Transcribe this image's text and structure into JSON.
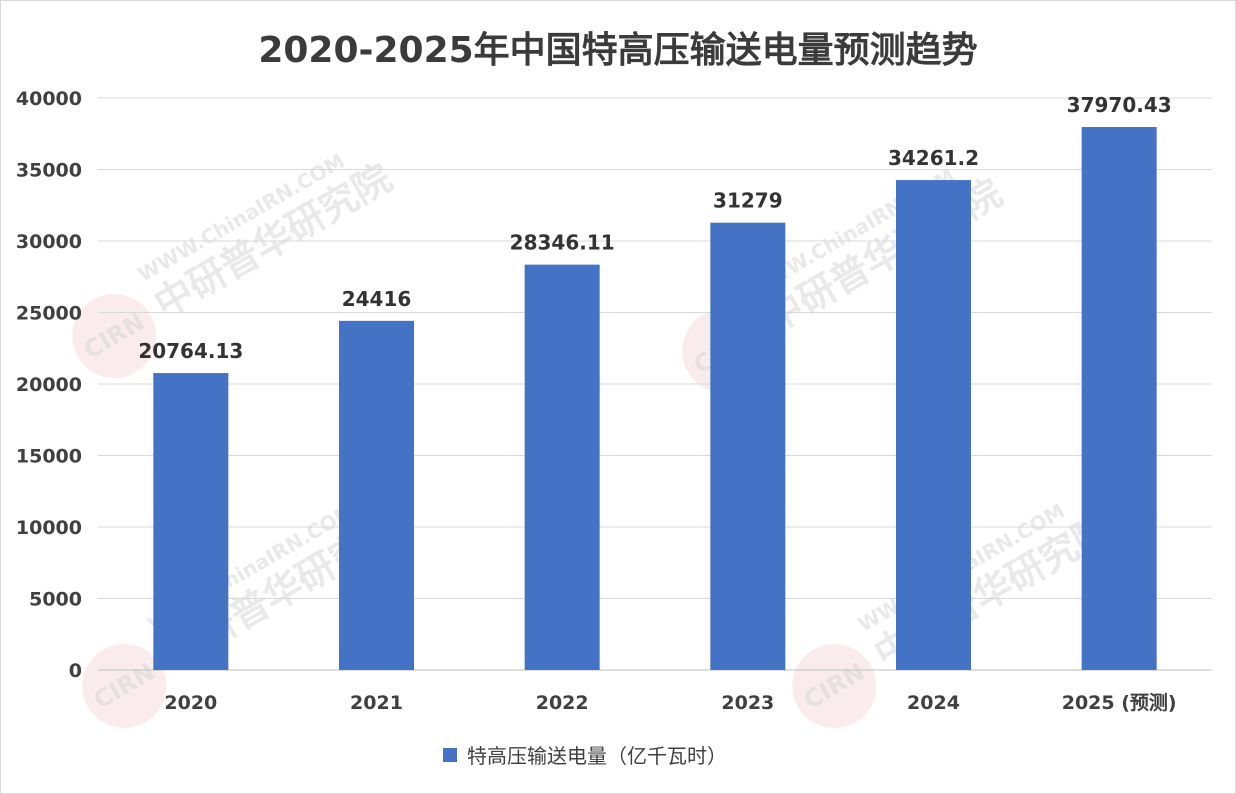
{
  "chart_data": {
    "type": "bar",
    "title": "2020-2025年中国特高压输送电量预测趋势",
    "categories": [
      "2020",
      "2021",
      "2022",
      "2023",
      "2024",
      "2025 (预测)"
    ],
    "series": [
      {
        "name": "特高压输送电量（亿千瓦时）",
        "values": [
          20764.13,
          24416,
          28346.11,
          31279,
          34261.2,
          37970.43
        ],
        "labels": [
          "20764.13",
          "24416",
          "28346.11",
          "31279",
          "34261.2",
          "37970.43"
        ],
        "color": "#4472c4"
      }
    ],
    "y_ticks": [
      "0",
      "5000",
      "10000",
      "15000",
      "20000",
      "25000",
      "30000",
      "35000",
      "40000"
    ],
    "ylim": [
      0,
      40000
    ],
    "grid": true,
    "legend_position": "bottom"
  },
  "watermark": {
    "url_text": "WWW.ChinaIRN.COM",
    "name_text": "中研普华研究院",
    "logo_text": "CIRN"
  }
}
